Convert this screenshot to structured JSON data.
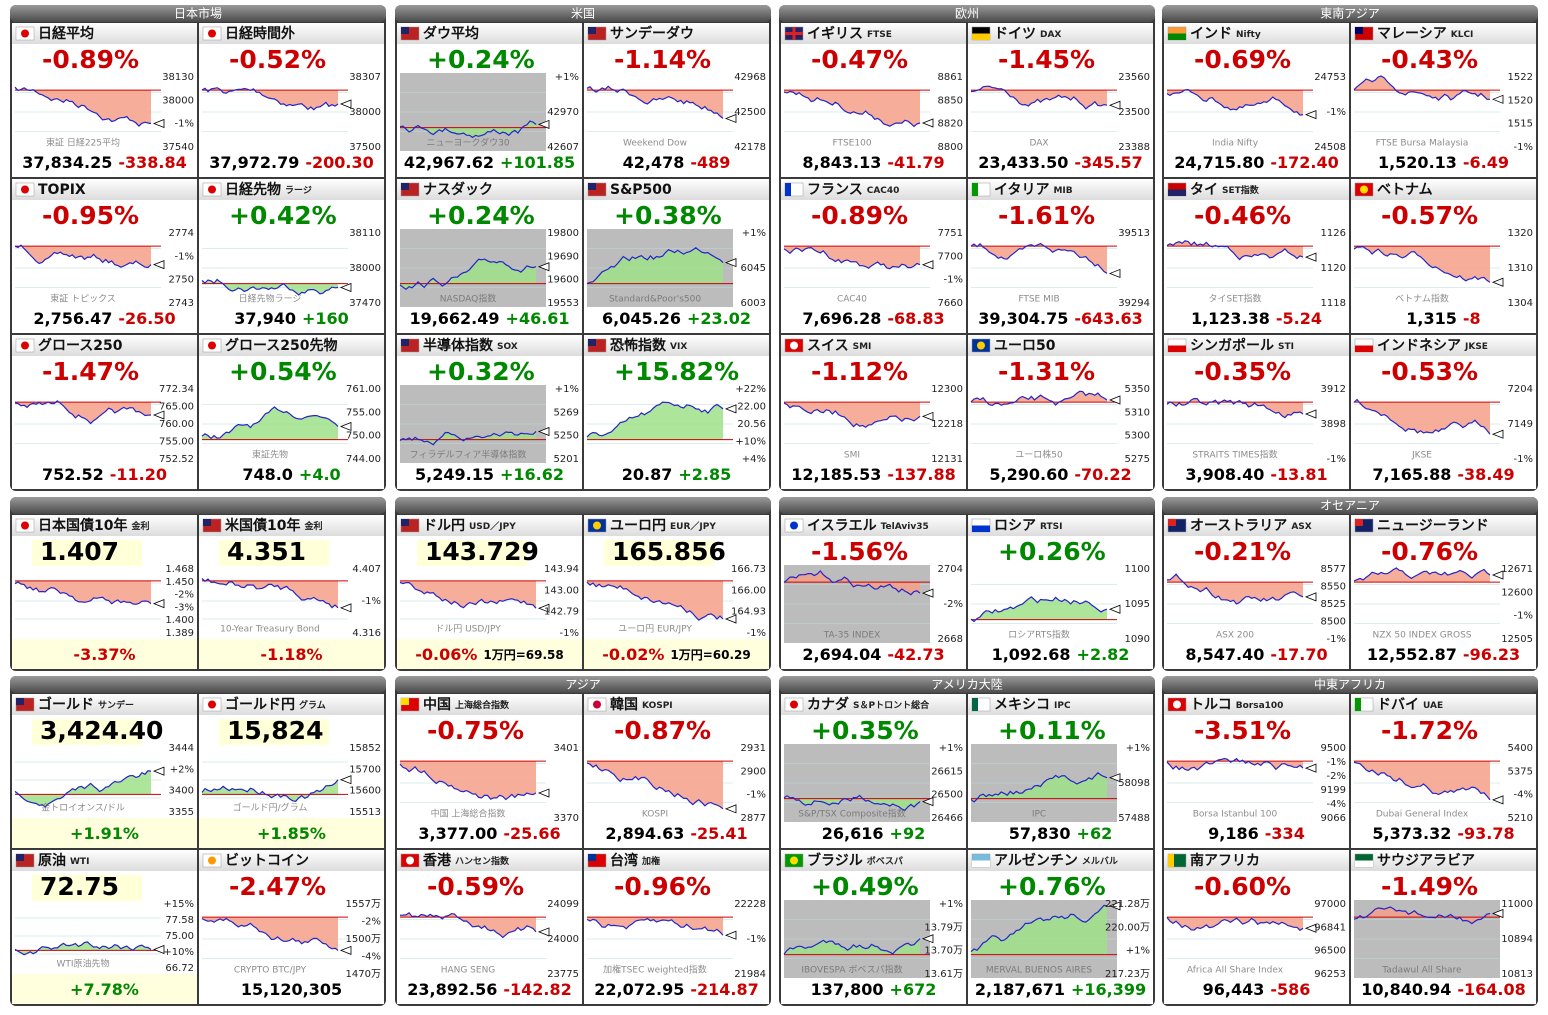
{
  "panels": [
    {
      "title": "日本市場",
      "tiles": [
        {
          "name": "日経平均",
          "flag": "jp",
          "trend": "down",
          "top": "-0.89%",
          "axis": [
            "38130",
            "38000",
            "-1%",
            "37540"
          ],
          "wm": "東証 日経225平均",
          "bottom": [
            "37,834.25",
            "-338.84"
          ]
        },
        {
          "name": "日経時間外",
          "flag": "jp",
          "trend": "down",
          "top": "-0.52%",
          "axis": [
            "38307",
            "38000",
            "37500"
          ],
          "bottom": [
            "37,972.79",
            "-200.30"
          ]
        },
        {
          "name": "TOPIX",
          "flag": "jp",
          "trend": "down",
          "top": "-0.95%",
          "axis": [
            "2774",
            "-1%",
            "2750",
            "2743"
          ],
          "wm": "東証 トピックス",
          "bottom": [
            "2,756.47",
            "-26.50"
          ]
        },
        {
          "name": "日経先物",
          "sub": "ラージ",
          "flag": "jp",
          "trend": "up",
          "top": "+0.42%",
          "axis": [
            "38110",
            "38000",
            "37470"
          ],
          "wm": "日経先物ラージ",
          "bottom": [
            "37,940",
            "+160"
          ]
        },
        {
          "name": "グロース250",
          "flag": "jp",
          "trend": "down",
          "top": "-1.47%",
          "axis": [
            "772.34",
            "765.00",
            "760.00",
            "755.00",
            "752.52"
          ],
          "bottom": [
            "752.52",
            "-11.20"
          ]
        },
        {
          "name": "グロース250先物",
          "flag": "jp",
          "trend": "up",
          "top": "+0.54%",
          "axis": [
            "761.00",
            "755.00",
            "750.00",
            "744.00"
          ],
          "wm": "東証先物",
          "bottom": [
            "748.0",
            "+4.0"
          ]
        }
      ]
    },
    {
      "title": "米国",
      "tiles": [
        {
          "name": "ダウ平均",
          "flag": "us",
          "trend": "up",
          "shade": true,
          "top": "+0.24%",
          "axis": [
            "+1%",
            "42970",
            "42607"
          ],
          "wm": "ニューヨークダウ30",
          "bottom": [
            "42,967.62",
            "+101.85"
          ]
        },
        {
          "name": "サンデーダウ",
          "flag": "us",
          "trend": "down",
          "top": "-1.14%",
          "axis": [
            "42968",
            "42500",
            "42178"
          ],
          "wm": "Weekend Dow",
          "bottom": [
            "42,478",
            "-489"
          ]
        },
        {
          "name": "ナスダック",
          "flag": "us",
          "trend": "up",
          "shade": true,
          "top": "+0.24%",
          "axis": [
            "19800",
            "19690",
            "19600",
            "19553"
          ],
          "wm": "NASDAQ指数",
          "bottom": [
            "19,662.49",
            "+46.61"
          ]
        },
        {
          "name": "S&P500",
          "flag": "us",
          "trend": "up",
          "shade": true,
          "top": "+0.38%",
          "axis": [
            "+1%",
            "6045",
            "6003"
          ],
          "wm": "Standard&Poor's500",
          "bottom": [
            "6,045.26",
            "+23.02"
          ]
        },
        {
          "name": "半導体指数",
          "sub": "SOX",
          "flag": "us",
          "trend": "up",
          "shade": true,
          "top": "+0.32%",
          "axis": [
            "+1%",
            "5269",
            "5250",
            "5201"
          ],
          "wm": "フィラデルフィア半導体指数",
          "bottom": [
            "5,249.15",
            "+16.62"
          ]
        },
        {
          "name": "恐怖指数",
          "sub": "VIX",
          "flag": "us",
          "trend": "up",
          "top": "+15.82%",
          "axis": [
            "+22%",
            "22.00",
            "20.56",
            "+10%",
            "+4%"
          ],
          "bottom": [
            "20.87",
            "+2.85"
          ]
        }
      ]
    },
    {
      "title": "欧州",
      "tiles": [
        {
          "name": "イギリス",
          "sub": "FTSE",
          "flag": "gb",
          "trend": "down",
          "top": "-0.47%",
          "axis": [
            "8861",
            "8850",
            "8820",
            "8800"
          ],
          "wm": "FTSE100",
          "bottom": [
            "8,843.13",
            "-41.79"
          ]
        },
        {
          "name": "ドイツ",
          "sub": "DAX",
          "flag": "de",
          "trend": "down",
          "top": "-1.45%",
          "axis": [
            "23560",
            "23500",
            "23388"
          ],
          "wm": "DAX",
          "bottom": [
            "23,433.50",
            "-345.57"
          ]
        },
        {
          "name": "フランス",
          "sub": "CAC40",
          "flag": "fr",
          "trend": "down",
          "top": "-0.89%",
          "axis": [
            "7751",
            "7700",
            "-1%",
            "7660"
          ],
          "wm": "CAC40",
          "bottom": [
            "7,696.28",
            "-68.83"
          ]
        },
        {
          "name": "イタリア",
          "sub": "MIB",
          "flag": "it",
          "trend": "down",
          "top": "-1.61%",
          "axis": [
            "39513",
            "39294"
          ],
          "wm": "FTSE MIB",
          "bottom": [
            "39,304.75",
            "-643.63"
          ]
        },
        {
          "name": "スイス",
          "sub": "SMI",
          "flag": "ch",
          "trend": "down",
          "top": "-1.12%",
          "axis": [
            "12300",
            "12218",
            "12131"
          ],
          "wm": "SMI",
          "bottom": [
            "12,185.53",
            "-137.88"
          ]
        },
        {
          "name": "ユーロ50",
          "flag": "eu",
          "trend": "down",
          "top": "-1.31%",
          "axis": [
            "5350",
            "5310",
            "5300",
            "5275"
          ],
          "wm": "ユーロ株50",
          "bottom": [
            "5,290.60",
            "-70.22"
          ]
        }
      ]
    },
    {
      "title": "東南アジア",
      "tiles": [
        {
          "name": "インド",
          "sub": "Nifty",
          "flag": "in",
          "trend": "down",
          "top": "-0.69%",
          "axis": [
            "24753",
            "-1%",
            "24508"
          ],
          "wm": "India Nifty",
          "bottom": [
            "24,715.80",
            "-172.40"
          ]
        },
        {
          "name": "マレーシア",
          "sub": "KLCI",
          "flag": "my",
          "trend": "down",
          "top": "-0.43%",
          "axis": [
            "1522",
            "1520",
            "1515",
            "-1%"
          ],
          "wm": "FTSE Bursa Malaysia",
          "bottom": [
            "1,520.13",
            "-6.49"
          ]
        },
        {
          "name": "タイ",
          "sub": "SET指数",
          "flag": "th",
          "trend": "down",
          "top": "-0.46%",
          "axis": [
            "1126",
            "1120",
            "1118"
          ],
          "wm": "タイSET指数",
          "bottom": [
            "1,123.38",
            "-5.24"
          ]
        },
        {
          "name": "ベトナム",
          "flag": "vn",
          "trend": "down",
          "top": "-0.57%",
          "axis": [
            "1320",
            "1310",
            "1304"
          ],
          "wm": "ベトナム指数",
          "bottom": [
            "1,315",
            "-8"
          ]
        },
        {
          "name": "シンガポール",
          "sub": "STI",
          "flag": "sg",
          "trend": "down",
          "top": "-0.35%",
          "axis": [
            "3912",
            "3898",
            "-1%"
          ],
          "wm": "STRAITS TIMES指数",
          "bottom": [
            "3,908.40",
            "-13.81"
          ]
        },
        {
          "name": "インドネシア",
          "sub": "JKSE",
          "flag": "id",
          "trend": "down",
          "top": "-0.53%",
          "axis": [
            "7204",
            "7149",
            "-1%"
          ],
          "wm": "JKSE",
          "bottom": [
            "7,165.88",
            "-38.49"
          ]
        }
      ]
    },
    {
      "tiles": [
        {
          "name": "日本国債10年",
          "sub": "金利",
          "flag": "jp",
          "trend": "down",
          "kind": "level",
          "top": "1.407",
          "axis": [
            "1.468",
            "1.450",
            "-2%",
            "-3%",
            "1.400",
            "1.389"
          ],
          "bottom": [
            "-3.37%"
          ]
        },
        {
          "name": "米国債10年",
          "sub": "金利",
          "flag": "us",
          "trend": "down",
          "kind": "level",
          "top": "4.351",
          "axis": [
            "4.407",
            "-1%",
            "4.316"
          ],
          "wm": "10-Year Treasury Bond",
          "bottom": [
            "-1.18%"
          ]
        }
      ]
    },
    {
      "tiles": [
        {
          "name": "ドル円",
          "sub": "USD／JPY",
          "flag": "us",
          "trend": "down",
          "kind": "level",
          "top": "143.729",
          "axis": [
            "143.94",
            "143.00",
            "142.79",
            "-1%"
          ],
          "wm": "ドル円 USD/JPY",
          "bottom": [
            "-0.06%",
            "1万円=69.58"
          ]
        },
        {
          "name": "ユーロ円",
          "sub": "EUR／JPY",
          "flag": "eu",
          "trend": "down",
          "kind": "level",
          "top": "165.856",
          "axis": [
            "166.73",
            "166.00",
            "164.93",
            "-1%"
          ],
          "wm": "ユーロ円 EUR/JPY",
          "bottom": [
            "-0.02%",
            "1万円=60.29"
          ]
        }
      ]
    },
    {
      "tiles": [
        {
          "name": "イスラエル",
          "sub": "TelAviv35",
          "flag": "il",
          "trend": "down",
          "shade": true,
          "top": "-1.56%",
          "axis": [
            "2704",
            "-2%",
            "2668"
          ],
          "wm": "TA-35 INDEX",
          "bottom": [
            "2,694.04",
            "-42.73"
          ]
        },
        {
          "name": "ロシア",
          "sub": "RTSI",
          "flag": "ru",
          "trend": "up",
          "top": "+0.26%",
          "axis": [
            "1100",
            "1095",
            "1090"
          ],
          "wm": "ロシアRTS指数",
          "bottom": [
            "1,092.68",
            "+2.82"
          ]
        }
      ]
    },
    {
      "title": "オセアニア",
      "tiles": [
        {
          "name": "オーストラリア",
          "sub": "ASX",
          "flag": "au",
          "trend": "down",
          "top": "-0.21%",
          "axis": [
            "8577",
            "8550",
            "8525",
            "8500",
            "-1%"
          ],
          "wm": "ASX 200",
          "bottom": [
            "8,547.40",
            "-17.70"
          ]
        },
        {
          "name": "ニュージーランド",
          "flag": "nz",
          "trend": "down",
          "top": "-0.76%",
          "axis": [
            "12671",
            "12600",
            "-1%",
            "12505"
          ],
          "wm": "NZX 50 INDEX GROSS",
          "bottom": [
            "12,552.87",
            "-96.23"
          ]
        }
      ]
    },
    {
      "tiles": [
        {
          "name": "ゴールド",
          "sub": "サンデー",
          "flag": "us",
          "trend": "up",
          "kind": "level",
          "top": "3,424.40",
          "axis": [
            "3444",
            "+2%",
            "3400",
            "3355"
          ],
          "wm": "金トロイオンス/ドル",
          "bottom": [
            "+1.91%"
          ]
        },
        {
          "name": "ゴールド円",
          "sub": "グラム",
          "flag": "jp",
          "trend": "up",
          "kind": "level",
          "top": "15,824",
          "axis": [
            "15852",
            "15700",
            "15600",
            "15513"
          ],
          "wm": "ゴールド円/グラム",
          "bottom": [
            "+1.85%"
          ]
        },
        {
          "name": "原油",
          "sub": "WTI",
          "flag": "us",
          "trend": "up",
          "kind": "level",
          "top": "72.75",
          "axis": [
            "+15%",
            "77.58",
            "75.00",
            "+10%",
            "66.72"
          ],
          "wm": "WTI原油先物",
          "bottom": [
            "+7.78%"
          ]
        },
        {
          "name": "ビットコイン",
          "flag": "btc",
          "trend": "down",
          "top": "-2.47%",
          "axis": [
            "1557万",
            "-2%",
            "1500万",
            "-4%",
            "1470万"
          ],
          "wm": "CRYPTO BTC/JPY",
          "bottom": [
            "15,120,305"
          ]
        }
      ]
    },
    {
      "title": "アジア",
      "tiles": [
        {
          "name": "中国",
          "sub": "上海総合指数",
          "flag": "cn",
          "trend": "down",
          "top": "-0.75%",
          "axis": [
            "3401",
            "3370"
          ],
          "wm": "中国 上海総合指数",
          "bottom": [
            "3,377.00",
            "-25.66"
          ]
        },
        {
          "name": "韓国",
          "sub": "KOSPI",
          "flag": "kr",
          "trend": "down",
          "top": "-0.87%",
          "axis": [
            "2931",
            "2900",
            "-1%",
            "2877"
          ],
          "wm": "KOSPI",
          "bottom": [
            "2,894.63",
            "-25.41"
          ]
        },
        {
          "name": "香港",
          "sub": "ハンセン指数",
          "flag": "hk",
          "trend": "down",
          "top": "-0.59%",
          "axis": [
            "24099",
            "24000",
            "23775"
          ],
          "wm": "HANG SENG",
          "bottom": [
            "23,892.56",
            "-142.82"
          ]
        },
        {
          "name": "台湾",
          "sub": "加権",
          "flag": "tw",
          "trend": "down",
          "top": "-0.96%",
          "axis": [
            "22228",
            "-1%",
            "21984"
          ],
          "wm": "加権TSEC weighted指数",
          "bottom": [
            "22,072.95",
            "-214.87"
          ]
        }
      ]
    },
    {
      "title": "アメリカ大陸",
      "tiles": [
        {
          "name": "カナダ",
          "sub": "S＆Pトロント総合",
          "flag": "ca",
          "trend": "up",
          "shade": true,
          "top": "+0.35%",
          "axis": [
            "+1%",
            "26615",
            "26500",
            "26466"
          ],
          "wm": "S&P/TSX Composite指数",
          "bottom": [
            "26,616",
            "+92"
          ]
        },
        {
          "name": "メキシコ",
          "sub": "IPC",
          "flag": "mx",
          "trend": "up",
          "shade": true,
          "top": "+0.11%",
          "axis": [
            "+1%",
            "58098",
            "57488"
          ],
          "wm": "IPC",
          "bottom": [
            "57,830",
            "+62"
          ]
        },
        {
          "name": "ブラジル",
          "sub": "ボベスパ",
          "flag": "br",
          "trend": "up",
          "shade": true,
          "top": "+0.49%",
          "axis": [
            "+1%",
            "13.79万",
            "13.70万",
            "13.61万"
          ],
          "wm": "IBOVESPA ボベスパ指数",
          "bottom": [
            "137,800",
            "+672"
          ]
        },
        {
          "name": "アルゼンチン",
          "sub": "メルバル",
          "flag": "ar",
          "trend": "up",
          "shade": true,
          "top": "+0.76%",
          "axis": [
            "221.28万",
            "220.00万",
            "+1%",
            "217.23万"
          ],
          "wm": "MERVAL BUENOS AIRES",
          "bottom": [
            "2,187,671",
            "+16,399"
          ]
        }
      ]
    },
    {
      "title": "中東アフリカ",
      "tiles": [
        {
          "name": "トルコ",
          "sub": "Borsa100",
          "flag": "tr",
          "trend": "down",
          "top": "-3.51%",
          "axis": [
            "9500",
            "-1%",
            "-2%",
            "9199",
            "-4%",
            "9066"
          ],
          "wm": "Borsa Istanbul 100",
          "bottom": [
            "9,186",
            "-334"
          ]
        },
        {
          "name": "ドバイ",
          "sub": "UAE",
          "flag": "ae",
          "trend": "down",
          "top": "-1.72%",
          "axis": [
            "5400",
            "5375",
            "-4%",
            "5210"
          ],
          "wm": "Dubai General Index",
          "bottom": [
            "5,373.32",
            "-93.78"
          ]
        },
        {
          "name": "南アフリカ",
          "flag": "za",
          "trend": "down",
          "top": "-0.60%",
          "axis": [
            "97000",
            "96841",
            "96500",
            "96253"
          ],
          "wm": "Africa All Share Index",
          "bottom": [
            "96,443",
            "-586"
          ]
        },
        {
          "name": "サウジアラビア",
          "flag": "sa",
          "trend": "down",
          "shade": true,
          "top": "-1.49%",
          "axis": [
            "11000",
            "10894",
            "10813"
          ],
          "wm": "Tadawul All Share",
          "bottom": [
            "10,840.94",
            "-164.08"
          ]
        }
      ]
    }
  ]
}
